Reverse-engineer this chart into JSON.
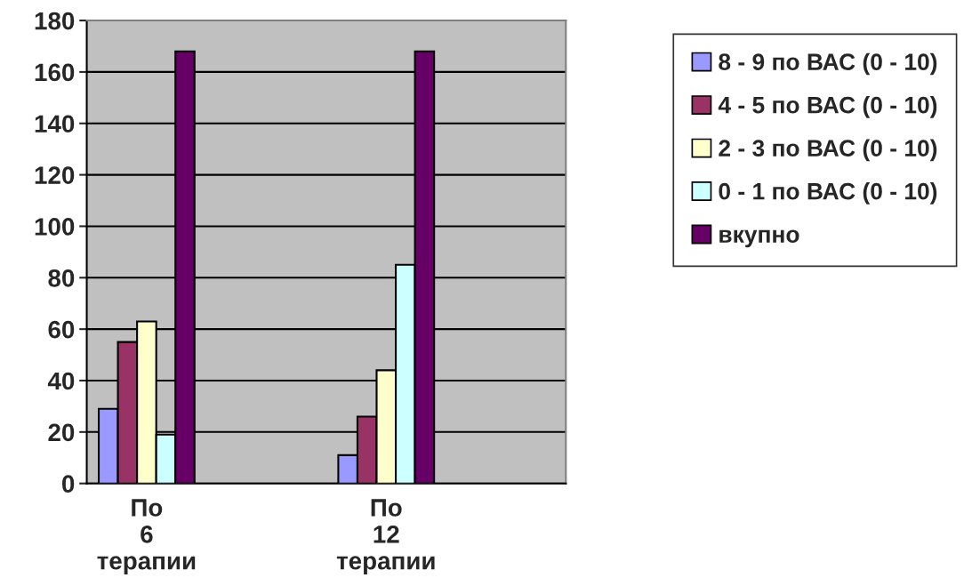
{
  "chart_data": {
    "type": "bar",
    "categories": [
      "По 6 терапии",
      null,
      "По 12 терапии",
      null
    ],
    "series": [
      {
        "name": "8 - 9 по ВАС (0 - 10)",
        "color": "#9999ff",
        "values": [
          29,
          null,
          11,
          null
        ]
      },
      {
        "name": "4 - 5 по ВАС (0 - 10)",
        "color": "#993366",
        "values": [
          55,
          null,
          26,
          null
        ]
      },
      {
        "name": "2 - 3 по ВАС (0 - 10)",
        "color": "#ffffcc",
        "values": [
          63,
          null,
          44,
          null
        ]
      },
      {
        "name": "0 - 1 по ВАС (0 - 10)",
        "color": "#ccffff",
        "values": [
          19,
          null,
          85,
          null
        ]
      },
      {
        "name": "вкупно",
        "color": "#660066",
        "values": [
          168,
          null,
          168,
          null
        ]
      }
    ],
    "ylim": [
      0,
      180
    ],
    "yticks": [
      0,
      20,
      40,
      60,
      80,
      100,
      120,
      140,
      160,
      180
    ],
    "grid": "y",
    "legend": "right"
  }
}
